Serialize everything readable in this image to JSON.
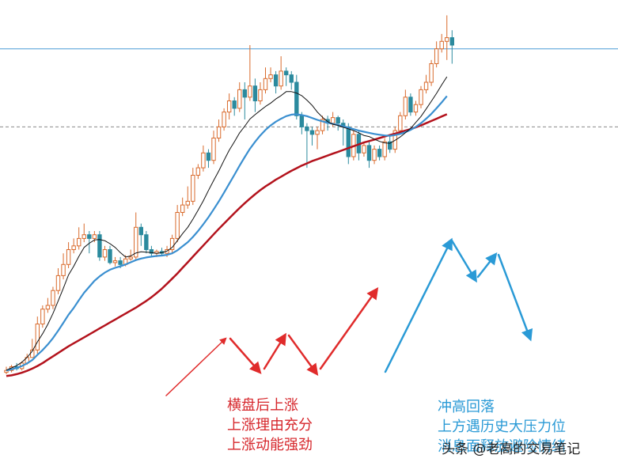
{
  "chart_data": {
    "type": "candlestick",
    "ylim": [
      0,
      100
    ],
    "horizontal_levels": [
      {
        "value": 89,
        "style": "solid",
        "color": "#4a9bd6"
      },
      {
        "value": 68,
        "style": "dashed",
        "color": "#8a8a8a"
      }
    ],
    "candles": [
      [
        2.0,
        2.5,
        3.5,
        1.5
      ],
      [
        2.5,
        3.5,
        4.0,
        2.0
      ],
      [
        3.5,
        3.0,
        4.5,
        2.5
      ],
      [
        3.0,
        4.5,
        5.0,
        2.5
      ],
      [
        4.5,
        6.0,
        7.0,
        4.0
      ],
      [
        6.0,
        8.0,
        11.0,
        6.0
      ],
      [
        8.0,
        15.0,
        17.0,
        7.0
      ],
      [
        15.0,
        19.0,
        20.0,
        14.0
      ],
      [
        19.0,
        20.0,
        22.0,
        18.0
      ],
      [
        20.0,
        24.0,
        25.0,
        19.0
      ],
      [
        24.0,
        28.0,
        30.0,
        23.0
      ],
      [
        28.0,
        31.0,
        34.0,
        27.0
      ],
      [
        31.0,
        35.0,
        37.0,
        30.0
      ],
      [
        35.0,
        36.0,
        38.0,
        34.0
      ],
      [
        36.0,
        38.0,
        41.0,
        35.0
      ],
      [
        38.0,
        39.0,
        42.0,
        37.0
      ],
      [
        39.0,
        38.0,
        40.0,
        34.0
      ],
      [
        38.0,
        39.0,
        40.0,
        37.0
      ],
      [
        39.0,
        33.0,
        40.0,
        32.0
      ],
      [
        33.0,
        35.0,
        36.0,
        32.0
      ],
      [
        35.0,
        31.5,
        36.0,
        31.0
      ],
      [
        31.5,
        32.0,
        33.0,
        30.5
      ],
      [
        32.0,
        31.0,
        33.0,
        30.0
      ],
      [
        31.0,
        32.5,
        33.5,
        30.5
      ],
      [
        32.5,
        33.0,
        35.0,
        32.0
      ],
      [
        33.0,
        41.0,
        45.0,
        32.0
      ],
      [
        41.0,
        39.0,
        42.0,
        36.0
      ],
      [
        39.0,
        35.0,
        40.0,
        34.0
      ],
      [
        35.0,
        34.0,
        36.0,
        33.0
      ],
      [
        34.0,
        34.5,
        35.0,
        33.0
      ],
      [
        34.5,
        34.0,
        35.5,
        33.5
      ],
      [
        34.0,
        35.0,
        36.0,
        33.0
      ],
      [
        35.0,
        38.0,
        39.0,
        34.0
      ],
      [
        38.0,
        45.0,
        47.0,
        37.0
      ],
      [
        45.0,
        47.0,
        49.0,
        44.0
      ],
      [
        47.0,
        48.0,
        52.0,
        46.0
      ],
      [
        48.0,
        55.0,
        57.0,
        47.0
      ],
      [
        55.0,
        57.0,
        58.0,
        54.0
      ],
      [
        57.0,
        61.0,
        63.0,
        56.0
      ],
      [
        61.0,
        59.0,
        62.0,
        57.0
      ],
      [
        59.0,
        65.0,
        67.0,
        58.0
      ],
      [
        65.0,
        68.0,
        70.0,
        64.0
      ],
      [
        68.0,
        72.0,
        73.0,
        67.0
      ],
      [
        72.0,
        75.0,
        77.0,
        70.0
      ],
      [
        75.0,
        73.0,
        76.0,
        71.0
      ],
      [
        73.0,
        78.0,
        80.0,
        72.0
      ],
      [
        78.0,
        76.0,
        80.0,
        70.0
      ],
      [
        76.0,
        79.0,
        90.0,
        75.0
      ],
      [
        79.0,
        75.0,
        81.0,
        72.0
      ],
      [
        75.0,
        78.0,
        80.0,
        74.0
      ],
      [
        78.0,
        81.0,
        84.0,
        77.0
      ],
      [
        81.0,
        82.0,
        84.0,
        80.0
      ],
      [
        82.0,
        79.0,
        83.0,
        77.0
      ],
      [
        79.0,
        83.0,
        87.0,
        78.0
      ],
      [
        83.0,
        82.0,
        84.0,
        79.0
      ],
      [
        82.0,
        80.0,
        83.0,
        78.0
      ],
      [
        80.0,
        71.0,
        82.0,
        70.0
      ],
      [
        71.0,
        68.0,
        72.0,
        66.0
      ],
      [
        68.0,
        67.0,
        69.0,
        57.0
      ],
      [
        67.0,
        66.0,
        68.0,
        63.0
      ],
      [
        66.0,
        67.0,
        68.0,
        62.0
      ],
      [
        67.0,
        70.0,
        71.0,
        66.0
      ],
      [
        70.0,
        69.0,
        71.0,
        67.0
      ],
      [
        69.0,
        70.5,
        72.0,
        68.0
      ],
      [
        70.5,
        69.0,
        71.0,
        67.0
      ],
      [
        69.0,
        68.0,
        70.0,
        63.0
      ],
      [
        68.0,
        60.0,
        69.0,
        58.0
      ],
      [
        60.0,
        66.0,
        67.0,
        59.0
      ],
      [
        66.0,
        61.0,
        67.0,
        59.0
      ],
      [
        61.0,
        63.0,
        64.0,
        60.0
      ],
      [
        63.0,
        59.0,
        64.0,
        57.0
      ],
      [
        59.0,
        62.0,
        63.0,
        58.0
      ],
      [
        62.0,
        60.0,
        63.0,
        59.0
      ],
      [
        60.0,
        64.0,
        65.0,
        59.0
      ],
      [
        64.0,
        62.0,
        66.0,
        61.0
      ],
      [
        62.0,
        67.0,
        68.0,
        61.0
      ],
      [
        67.0,
        71.0,
        72.0,
        66.0
      ],
      [
        71.0,
        76.0,
        78.0,
        70.0
      ],
      [
        76.0,
        72.0,
        77.0,
        71.0
      ],
      [
        72.0,
        74.0,
        75.0,
        71.0
      ],
      [
        74.0,
        78.0,
        79.0,
        73.0
      ],
      [
        78.0,
        80.0,
        82.0,
        77.0
      ],
      [
        80.0,
        85.0,
        86.0,
        79.0
      ],
      [
        85.0,
        89.0,
        91.0,
        84.0
      ],
      [
        89.0,
        91.0,
        93.0,
        88.0
      ],
      [
        91.0,
        92.0,
        98.0,
        86.0
      ],
      [
        92.0,
        90.0,
        94.0,
        85.0
      ]
    ],
    "ma_short": [
      2.6,
      3.2,
      3.8,
      4.7,
      6.0,
      7.7,
      10.2,
      12.4,
      14.9,
      17.8,
      21.2,
      24.6,
      28.2,
      30.5,
      33.2,
      35.6,
      36.7,
      37.6,
      37.7,
      37.4,
      36.6,
      35.6,
      34.2,
      33.0,
      33.3,
      34.1,
      34.4,
      34.3,
      34.2,
      34.0,
      34.2,
      34.6,
      35.6,
      37.4,
      39.3,
      41.0,
      43.2,
      45.6,
      48.1,
      50.9,
      53.6,
      56.2,
      59.0,
      61.7,
      64.0,
      66.4,
      68.2,
      70.1,
      71.3,
      72.4,
      73.5,
      74.4,
      75.5,
      76.4,
      77.5,
      77.5,
      77.1,
      76.4,
      75.2,
      73.8,
      72.0,
      70.6,
      69.4,
      68.7,
      68.4,
      67.9,
      67.5,
      67.0,
      66.4,
      65.7,
      65.4,
      64.7,
      64.1,
      63.7,
      63.6,
      64.4,
      65.3,
      66.4,
      67.6,
      69.2,
      70.8,
      72.8,
      74.9,
      77.0,
      79.3,
      81.5
    ],
    "ma_mid": [
      2.5,
      2.8,
      3.2,
      3.7,
      4.4,
      5.3,
      6.7,
      8.0,
      9.5,
      11.2,
      13.2,
      15.3,
      17.5,
      19.3,
      21.4,
      23.4,
      25.0,
      26.6,
      27.8,
      28.8,
      29.6,
      30.1,
      30.5,
      31.0,
      31.6,
      32.2,
      32.6,
      32.9,
      33.1,
      33.3,
      33.4,
      33.6,
      34.0,
      34.8,
      35.9,
      37.0,
      38.4,
      40.0,
      41.8,
      43.7,
      45.8,
      48.0,
      50.3,
      52.7,
      55.1,
      57.6,
      59.9,
      62.1,
      64.0,
      65.7,
      67.2,
      68.4,
      69.4,
      70.2,
      70.9,
      71.3,
      71.4,
      71.2,
      70.9,
      70.4,
      69.9,
      69.5,
      69.1,
      68.8,
      68.5,
      68.2,
      67.8,
      67.4,
      67.0,
      66.7,
      66.4,
      66.1,
      65.9,
      65.7,
      65.6,
      65.8,
      66.1,
      66.6,
      67.2,
      68.0,
      69.0,
      70.2,
      71.5,
      73.0,
      74.6,
      76.3
    ],
    "ma_long": [
      1.0,
      1.2,
      1.5,
      1.9,
      2.4,
      3.0,
      3.7,
      4.5,
      5.4,
      6.3,
      7.2,
      8.1,
      9.0,
      9.8,
      10.6,
      11.4,
      12.2,
      13.0,
      13.8,
      14.6,
      15.4,
      16.2,
      17.0,
      17.8,
      18.6,
      19.4,
      20.3,
      21.2,
      22.2,
      23.3,
      24.5,
      25.8,
      27.2,
      28.6,
      30.1,
      31.6,
      33.1,
      34.6,
      36.1,
      37.6,
      39.1,
      40.6,
      42.0,
      43.4,
      44.8,
      46.2,
      47.5,
      48.7,
      49.9,
      51.0,
      52.0,
      52.9,
      53.8,
      54.6,
      55.4,
      56.2,
      56.9,
      57.6,
      58.2,
      58.8,
      59.3,
      59.8,
      60.3,
      60.8,
      61.3,
      61.8,
      62.3,
      62.8,
      63.3,
      63.8,
      64.2,
      64.6,
      65.0,
      65.4,
      65.8,
      66.2,
      66.6,
      67.0,
      67.4,
      67.9,
      68.4,
      69.0,
      69.6,
      70.2,
      70.8,
      71.4
    ],
    "annotations": [
      {
        "lines": [
          "横盘后上涨",
          "上涨理由充分",
          "上涨动能强劲"
        ],
        "color": "#d6262b"
      },
      {
        "lines": [
          "冲高回落",
          "上方遇历史大压力位",
          "消息面释放避险情绪"
        ],
        "color": "#2a9ad6"
      }
    ]
  },
  "watermark": "头条 @老高的交易笔记",
  "colors": {
    "up": "#d96a2c",
    "down": "#2b8a9e",
    "ma_short": "#111111",
    "ma_mid": "#3a8fd0",
    "ma_long": "#b3121c",
    "arrow_red": "#e02b2b",
    "arrow_blue": "#2a9ad6"
  }
}
